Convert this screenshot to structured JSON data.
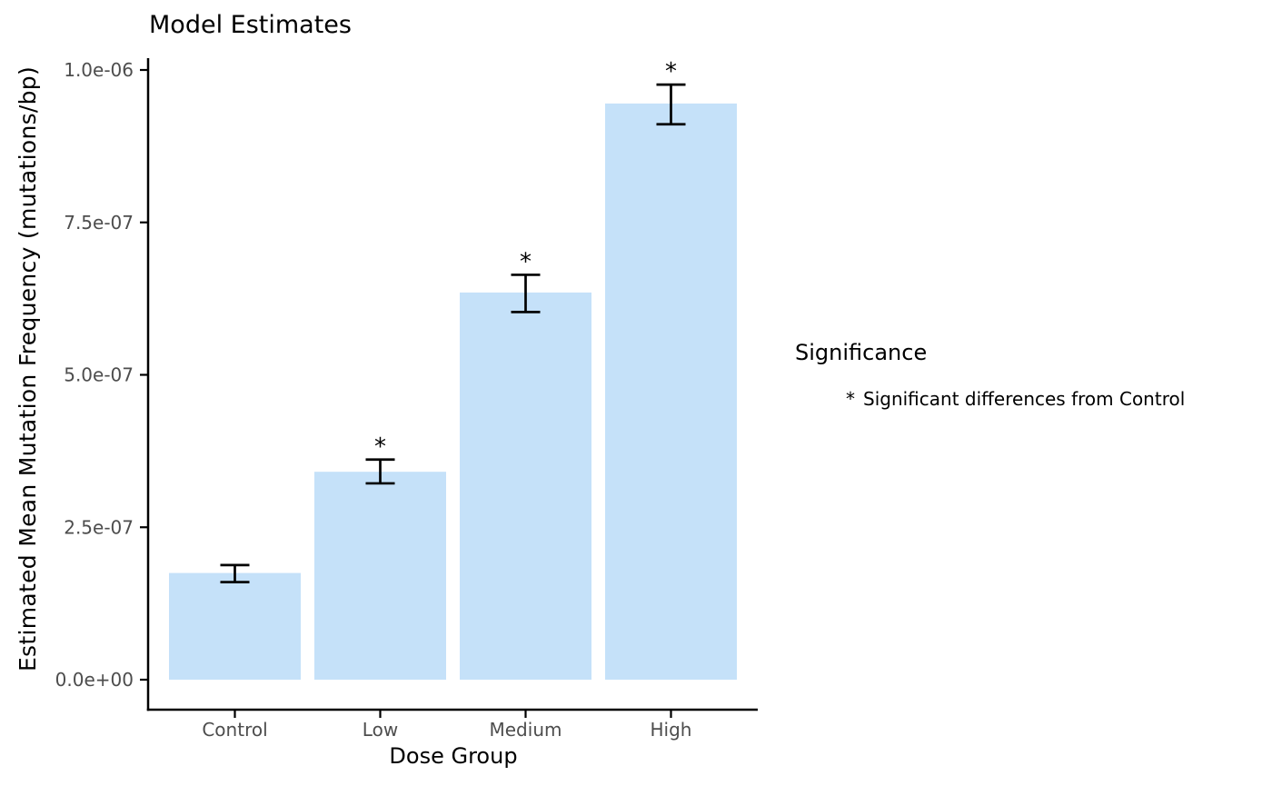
{
  "chart_data": {
    "type": "bar",
    "title": "Model Estimates",
    "xlabel": "Dose Group",
    "ylabel": "Estimated Mean Mutation Frequency (mutations/bp)",
    "categories": [
      "Control",
      "Low",
      "Medium",
      "High"
    ],
    "values": [
      1.75e-07,
      3.41e-07,
      6.35e-07,
      9.45e-07
    ],
    "error_bars": {
      "lower": [
        1.6e-07,
        3.22e-07,
        6.03e-07,
        9.11e-07
      ],
      "upper": [
        1.88e-07,
        3.61e-07,
        6.64e-07,
        9.76e-07
      ]
    },
    "significance_markers": [
      "",
      "*",
      "*",
      "*"
    ],
    "yticks": {
      "values": [
        0,
        2.5e-07,
        5e-07,
        7.5e-07,
        1e-06
      ],
      "labels": [
        "0.0e+00",
        "2.5e-07",
        "5.0e-07",
        "7.5e-07",
        "1.0e-06"
      ]
    },
    "ylim": [
      0,
      1.05e-06
    ],
    "grid": false,
    "legend_position": "right",
    "legend": {
      "title": "Significance",
      "key": "*",
      "label": "Significant differences from Control"
    },
    "bar_color": "#C5E1F9",
    "axis_color": "#000000",
    "tick_label_color": "#4D4D4D",
    "marker_color": "#000000"
  }
}
